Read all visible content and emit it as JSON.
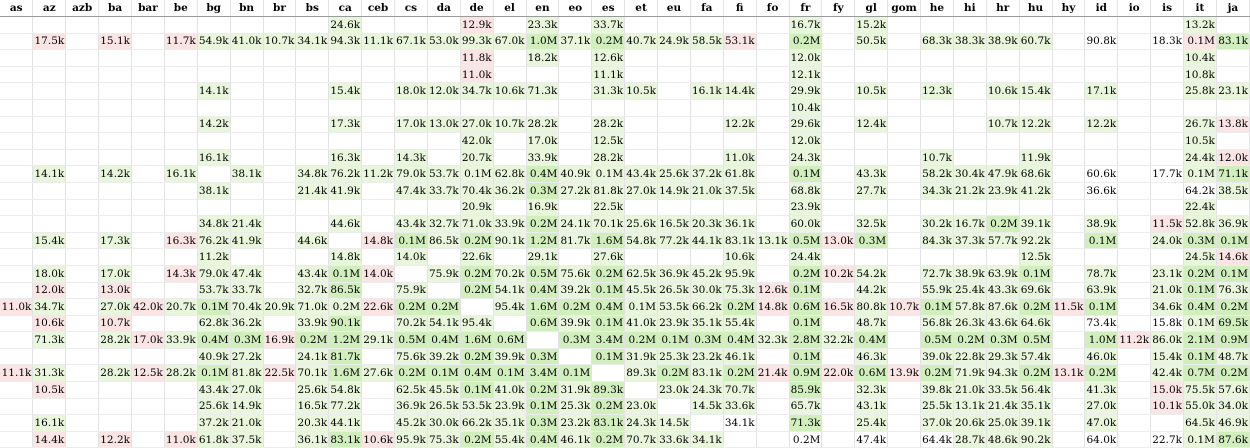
{
  "columns": [
    "as",
    "az",
    "azb",
    "ba",
    "bar",
    "be",
    "bg",
    "bn",
    "br",
    "bs",
    "ca",
    "ceb",
    "cs",
    "da",
    "de",
    "el",
    "en",
    "eo",
    "es",
    "et",
    "eu",
    "fa",
    "fi",
    "fo",
    "fr",
    "fy",
    "gl",
    "gom",
    "he",
    "hi",
    "hr",
    "hu",
    "hy",
    "id",
    "io",
    "is",
    "it",
    "ja"
  ],
  "colors": {
    "g": "#e8f6dc",
    "G": "#d1efbd",
    "p": "#fbe4e4",
    "w": "#ffffff"
  },
  "rows": [
    [
      "",
      "",
      "",
      "",
      "",
      "",
      "",
      "",
      "",
      "",
      "24.6k",
      "",
      "",
      "",
      "12.9k",
      "",
      "23.3k",
      "",
      "33.7k",
      "",
      "",
      "",
      "",
      "",
      "16.7k",
      "",
      "15.2k",
      "",
      "",
      "",
      "",
      "",
      "",
      "",
      "",
      "",
      "13.2k",
      ""
    ],
    [
      "",
      "17.5k",
      "",
      "15.1k",
      "",
      "11.7k",
      "54.9k",
      "41.0k",
      "10.7k",
      "34.1k",
      "94.3k",
      "11.1k",
      "67.1k",
      "53.0k",
      "99.3k",
      "67.0k",
      "1.0M",
      "37.1k",
      "0.2M",
      "40.7k",
      "24.9k",
      "58.5k",
      "53.1k",
      "",
      "0.2M",
      "",
      "50.5k",
      "",
      "68.3k",
      "38.3k",
      "38.9k",
      "60.7k",
      "",
      "90.8k",
      "",
      "18.3k",
      "0.1M",
      "83.1k"
    ],
    [
      "",
      "",
      "",
      "",
      "",
      "",
      "",
      "",
      "",
      "",
      "",
      "",
      "",
      "",
      "11.8k",
      "",
      "18.2k",
      "",
      "12.6k",
      "",
      "",
      "",
      "",
      "",
      "12.0k",
      "",
      "",
      "",
      "",
      "",
      "",
      "",
      "",
      "",
      "",
      "",
      "10.4k",
      ""
    ],
    [
      "",
      "",
      "",
      "",
      "",
      "",
      "",
      "",
      "",
      "",
      "",
      "",
      "",
      "",
      "11.0k",
      "",
      "",
      "",
      "11.1k",
      "",
      "",
      "",
      "",
      "",
      "12.1k",
      "",
      "",
      "",
      "",
      "",
      "",
      "",
      "",
      "",
      "",
      "",
      "10.8k",
      ""
    ],
    [
      "",
      "",
      "",
      "",
      "",
      "",
      "14.1k",
      "",
      "",
      "",
      "15.4k",
      "",
      "18.0k",
      "12.0k",
      "34.7k",
      "10.6k",
      "71.3k",
      "",
      "31.3k",
      "10.5k",
      "",
      "16.1k",
      "14.4k",
      "",
      "29.9k",
      "",
      "10.5k",
      "",
      "12.3k",
      "",
      "10.6k",
      "15.4k",
      "",
      "17.1k",
      "",
      "",
      "25.8k",
      "23.1k"
    ],
    [
      "",
      "",
      "",
      "",
      "",
      "",
      "",
      "",
      "",
      "",
      "",
      "",
      "",
      "",
      "",
      "",
      "",
      "",
      "",
      "",
      "",
      "",
      "",
      "",
      "10.4k",
      "",
      "",
      "",
      "",
      "",
      "",
      "",
      "",
      "",
      "",
      "",
      "",
      ""
    ],
    [
      "",
      "",
      "",
      "",
      "",
      "",
      "14.2k",
      "",
      "",
      "",
      "17.3k",
      "",
      "17.0k",
      "13.0k",
      "27.0k",
      "10.7k",
      "28.2k",
      "",
      "28.2k",
      "",
      "",
      "",
      "12.2k",
      "",
      "29.6k",
      "",
      "12.4k",
      "",
      "",
      "",
      "10.7k",
      "12.2k",
      "",
      "12.2k",
      "",
      "",
      "26.7k",
      "13.8k"
    ],
    [
      "",
      "",
      "",
      "",
      "",
      "",
      "",
      "",
      "",
      "",
      "",
      "",
      "",
      "",
      "42.0k",
      "",
      "17.0k",
      "",
      "12.5k",
      "",
      "",
      "",
      "",
      "",
      "12.0k",
      "",
      "",
      "",
      "",
      "",
      "",
      "",
      "",
      "",
      "",
      "",
      "10.5k",
      ""
    ],
    [
      "",
      "",
      "",
      "",
      "",
      "",
      "16.1k",
      "",
      "",
      "",
      "16.3k",
      "",
      "14.3k",
      "",
      "20.7k",
      "",
      "33.9k",
      "",
      "28.2k",
      "",
      "",
      "",
      "11.0k",
      "",
      "24.3k",
      "",
      "",
      "",
      "10.7k",
      "",
      "",
      "11.9k",
      "",
      "",
      "",
      "",
      "24.4k",
      "12.0k"
    ],
    [
      "",
      "14.1k",
      "",
      "14.2k",
      "",
      "16.1k",
      "",
      "38.1k",
      "",
      "34.8k",
      "76.2k",
      "11.2k",
      "79.0k",
      "53.7k",
      "0.1M",
      "62.8k",
      "0.4M",
      "40.9k",
      "0.1M",
      "43.4k",
      "25.6k",
      "37.2k",
      "61.8k",
      "",
      "0.1M",
      "",
      "43.3k",
      "",
      "58.2k",
      "30.4k",
      "47.9k",
      "68.6k",
      "",
      "60.6k",
      "",
      "17.7k",
      "0.1M",
      "71.1k"
    ],
    [
      "",
      "",
      "",
      "",
      "",
      "",
      "38.1k",
      "",
      "",
      "21.4k",
      "41.9k",
      "",
      "47.4k",
      "33.7k",
      "70.4k",
      "36.2k",
      "0.3M",
      "27.2k",
      "81.8k",
      "27.0k",
      "14.9k",
      "21.0k",
      "37.5k",
      "",
      "68.8k",
      "",
      "27.7k",
      "",
      "34.3k",
      "21.2k",
      "23.9k",
      "41.2k",
      "",
      "36.6k",
      "",
      "",
      "64.2k",
      "38.5k"
    ],
    [
      "",
      "",
      "",
      "",
      "",
      "",
      "",
      "",
      "",
      "",
      "",
      "",
      "",
      "",
      "20.9k",
      "",
      "16.9k",
      "",
      "22.5k",
      "",
      "",
      "",
      "",
      "",
      "23.9k",
      "",
      "",
      "",
      "",
      "",
      "",
      "",
      "",
      "",
      "",
      "",
      "22.4k",
      ""
    ],
    [
      "",
      "",
      "",
      "",
      "",
      "",
      "34.8k",
      "21.4k",
      "",
      "",
      "44.6k",
      "",
      "43.4k",
      "32.7k",
      "71.0k",
      "33.9k",
      "0.2M",
      "24.1k",
      "70.1k",
      "25.6k",
      "16.5k",
      "20.3k",
      "36.1k",
      "",
      "60.0k",
      "",
      "32.5k",
      "",
      "30.2k",
      "16.7k",
      "0.2M",
      "39.1k",
      "",
      "38.9k",
      "",
      "11.5k",
      "52.8k",
      "36.9k"
    ],
    [
      "",
      "15.4k",
      "",
      "17.3k",
      "",
      "16.3k",
      "76.2k",
      "41.9k",
      "",
      "44.6k",
      "",
      "14.8k",
      "0.1M",
      "86.5k",
      "0.2M",
      "90.1k",
      "1.2M",
      "81.7k",
      "1.6M",
      "54.8k",
      "77.2k",
      "44.1k",
      "83.1k",
      "13.1k",
      "0.5M",
      "13.0k",
      "0.3M",
      "",
      "84.3k",
      "37.3k",
      "57.7k",
      "92.2k",
      "",
      "0.1M",
      "",
      "24.0k",
      "0.3M",
      "0.1M"
    ],
    [
      "",
      "",
      "",
      "",
      "",
      "",
      "11.2k",
      "",
      "",
      "",
      "14.8k",
      "",
      "14.0k",
      "",
      "22.6k",
      "",
      "29.1k",
      "",
      "27.6k",
      "",
      "",
      "",
      "10.6k",
      "",
      "24.4k",
      "",
      "",
      "",
      "",
      "",
      "",
      "12.5k",
      "",
      "",
      "",
      "",
      "24.5k",
      "14.6k"
    ],
    [
      "",
      "18.0k",
      "",
      "17.0k",
      "",
      "14.3k",
      "79.0k",
      "47.4k",
      "",
      "43.4k",
      "0.1M",
      "14.0k",
      "",
      "75.9k",
      "0.2M",
      "70.2k",
      "0.5M",
      "75.6k",
      "0.2M",
      "62.5k",
      "36.9k",
      "45.2k",
      "95.9k",
      "",
      "0.2M",
      "10.2k",
      "54.2k",
      "",
      "72.7k",
      "38.9k",
      "63.9k",
      "0.1M",
      "",
      "78.7k",
      "",
      "23.1k",
      "0.2M",
      "0.1M"
    ],
    [
      "",
      "12.0k",
      "",
      "13.0k",
      "",
      "",
      "53.7k",
      "33.7k",
      "",
      "32.7k",
      "86.5k",
      "",
      "75.9k",
      "",
      "0.2M",
      "54.1k",
      "0.4M",
      "39.2k",
      "0.1M",
      "45.5k",
      "26.5k",
      "30.0k",
      "75.3k",
      "12.6k",
      "0.1M",
      "",
      "44.2k",
      "",
      "55.9k",
      "25.4k",
      "43.3k",
      "69.6k",
      "",
      "63.9k",
      "",
      "21.0k",
      "0.1M",
      "76.3k"
    ],
    [
      "11.0k",
      "34.7k",
      "",
      "27.0k",
      "42.0k",
      "20.7k",
      "0.1M",
      "70.4k",
      "20.9k",
      "71.0k",
      "0.2M",
      "22.6k",
      "0.2M",
      "0.2M",
      "",
      "95.4k",
      "1.6M",
      "0.2M",
      "0.4M",
      "0.1M",
      "53.5k",
      "66.2k",
      "0.2M",
      "14.8k",
      "0.6M",
      "16.5k",
      "80.8k",
      "10.7k",
      "0.1M",
      "57.8k",
      "87.6k",
      "0.2M",
      "11.5k",
      "0.1M",
      "",
      "34.6k",
      "0.4M",
      "0.2M"
    ],
    [
      "",
      "10.6k",
      "",
      "10.7k",
      "",
      "",
      "62.8k",
      "36.2k",
      "",
      "33.9k",
      "90.1k",
      "",
      "70.2k",
      "54.1k",
      "95.4k",
      "",
      "0.6M",
      "39.9k",
      "0.1M",
      "41.0k",
      "23.9k",
      "35.1k",
      "55.4k",
      "",
      "0.1M",
      "",
      "48.7k",
      "",
      "56.8k",
      "26.3k",
      "43.6k",
      "64.6k",
      "",
      "73.4k",
      "",
      "15.8k",
      "0.1M",
      "69.5k"
    ],
    [
      "",
      "71.3k",
      "",
      "28.2k",
      "17.0k",
      "33.9k",
      "0.4M",
      "0.3M",
      "16.9k",
      "0.2M",
      "1.2M",
      "29.1k",
      "0.5M",
      "0.4M",
      "1.6M",
      "0.6M",
      "",
      "0.3M",
      "3.4M",
      "0.2M",
      "0.1M",
      "0.3M",
      "0.4M",
      "32.3k",
      "2.8M",
      "32.2k",
      "0.4M",
      "",
      "0.5M",
      "0.2M",
      "0.3M",
      "0.5M",
      "",
      "1.0M",
      "11.2k",
      "86.0k",
      "2.1M",
      "0.9M"
    ],
    [
      "",
      "",
      "",
      "",
      "",
      "",
      "40.9k",
      "27.2k",
      "",
      "24.1k",
      "81.7k",
      "",
      "75.6k",
      "39.2k",
      "0.2M",
      "39.9k",
      "0.3M",
      "",
      "0.1M",
      "31.9k",
      "25.3k",
      "23.2k",
      "46.1k",
      "",
      "0.1M",
      "",
      "46.3k",
      "",
      "39.0k",
      "22.8k",
      "29.3k",
      "57.4k",
      "",
      "46.0k",
      "",
      "15.4k",
      "0.1M",
      "48.7k"
    ],
    [
      "11.1k",
      "31.3k",
      "",
      "28.2k",
      "12.5k",
      "28.2k",
      "0.1M",
      "81.8k",
      "22.5k",
      "70.1k",
      "1.6M",
      "27.6k",
      "0.2M",
      "0.1M",
      "0.4M",
      "0.1M",
      "3.4M",
      "0.1M",
      "",
      "89.3k",
      "0.2M",
      "83.1k",
      "0.2M",
      "21.4k",
      "0.9M",
      "22.0k",
      "0.6M",
      "13.9k",
      "0.2M",
      "71.9k",
      "94.3k",
      "0.2M",
      "13.1k",
      "0.2M",
      "",
      "42.4k",
      "0.7M",
      "0.2M"
    ],
    [
      "",
      "10.5k",
      "",
      "",
      "",
      "",
      "43.4k",
      "27.0k",
      "",
      "25.6k",
      "54.8k",
      "",
      "62.5k",
      "45.5k",
      "0.1M",
      "41.0k",
      "0.2M",
      "31.9k",
      "89.3k",
      "",
      "23.0k",
      "24.3k",
      "70.7k",
      "",
      "85.9k",
      "",
      "32.3k",
      "",
      "39.8k",
      "21.0k",
      "33.5k",
      "56.4k",
      "",
      "41.3k",
      "",
      "15.0k",
      "75.5k",
      "57.6k"
    ],
    [
      "",
      "",
      "",
      "",
      "",
      "",
      "25.6k",
      "14.9k",
      "",
      "16.5k",
      "77.2k",
      "",
      "36.9k",
      "26.5k",
      "53.5k",
      "23.9k",
      "0.1M",
      "25.3k",
      "0.2M",
      "23.0k",
      "",
      "14.5k",
      "33.6k",
      "",
      "65.7k",
      "",
      "43.1k",
      "",
      "25.5k",
      "13.1k",
      "21.4k",
      "35.1k",
      "",
      "27.0k",
      "",
      "10.1k",
      "55.0k",
      "34.0k"
    ],
    [
      "",
      "16.1k",
      "",
      "",
      "",
      "",
      "37.2k",
      "21.0k",
      "",
      "20.3k",
      "44.1k",
      "",
      "45.2k",
      "30.0k",
      "66.2k",
      "35.1k",
      "0.3M",
      "23.2k",
      "83.1k",
      "24.3k",
      "14.5k",
      "",
      "34.1k",
      "",
      "71.3k",
      "",
      "25.4k",
      "",
      "37.0k",
      "20.6k",
      "25.0k",
      "39.1k",
      "",
      "47.0k",
      "",
      "",
      "64.5k",
      "46.9k"
    ],
    [
      "",
      "14.4k",
      "",
      "12.2k",
      "",
      "11.0k",
      "61.8k",
      "37.5k",
      "",
      "36.1k",
      "83.1k",
      "10.6k",
      "95.9k",
      "75.3k",
      "0.2M",
      "55.4k",
      "0.4M",
      "46.1k",
      "0.2M",
      "70.7k",
      "33.6k",
      "34.1k",
      "",
      "",
      "0.2M",
      "",
      "47.4k",
      "",
      "64.4k",
      "28.7k",
      "48.6k",
      "90.2k",
      "",
      "64.0k",
      "",
      "22.7k",
      "0.1M",
      "87.6k"
    ]
  ],
  "shades": [
    "wwwwwwwwwwgwwwpwgwgwwwwwgwgwwwwwwwwwgw",
    "wpwpwpggggggggggGgGgggpwGwgwgggggwgwpGg",
    "wwwwwwwwwwwwwwpwgwgwwwwwgwwwwwwwwwwwgw",
    "wwwwwwwwwwwwwwpwwwgwwwwwgwwwwwwwwwwwgw",
    "wwwwwwgwwwgwgggggwgggggwgwgwgwggwgwwgg",
    "wwwwwwwwwwwwwwwwwwwwwwwwgwwwwwwwwwwwww",
    "wwwwwwgwwwgwgggggwgwwwgwgwgwwwggwgwwgp",
    "wwwwwwwwwwwwwwgwgwgwwwwwgwwwwwwwwwwwgw",
    "wwwwwwgwwwgwgwgwgwgwwwgwgwwwgwwgwwwwgp",
    "wgwgwgwgwgggggggGggggggwGwgwgggggwgwgGg",
    "wwwwwwgwwgggggggGggggggwgwgwgggggwgwwgg",
    "wwwwwwwwwwwwwwgwgwgwwwwwgwwwwwwwwwwwgw",
    "wwwwwwggwwgwggggGggggggwgwgwggGgwgwpgg",
    "wgwgwpggwgwpGgGgGgGgggggGpGwggggwGwgGG",
    "wwwwwwgwwwgwgwgwgwgwwwgwgwwwwwwgwwwwgp",
    "wgwgwpggwgGpwgGgGgGggggwGpgwgggGwgwgGG",
    "wpwpwwggwgGwgwGgGgGggggpGwgwggggwgwgGg",
    "pgwgpgGggggpGGwgGGGgggGpGpgpGggGpGwgGG",
    "wpwpwwggwgGwgggwGgGgggggGwgwgggggwgwgGg",
    "wgwgpgGGpGGgGGGGwGGGGGGgGgGwGGGGwGpgGG",
    "wwwwwwggwgGwggGgGwGgggggGwgwggggwgwgGg",
    "pgwgpgGgpgGgGGGGGGwgGgGpGpGpGggGpGwgGG",
    "wpwwwwggwggwggGgGgGwggggGwgwggggwgwpgg",
    "wwwwwwggwggwggggGgGgwggwgwgwggggwgwpgg",
    "wgwwwwggwggwggggGgGggpwgGwgwggggwgwwgg",
    "wpwpwpggwgGpggGgGgGggggwwGwgwggggwgwgGg"
  ]
}
